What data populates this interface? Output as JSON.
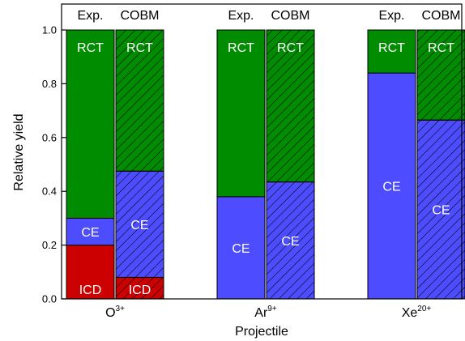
{
  "chart_data": {
    "type": "bar",
    "stacked": true,
    "xlabel": "Projectile",
    "ylabel": "Relative yield",
    "ylim": [
      0,
      1.0
    ],
    "yticks": [
      "0.0",
      "0.2",
      "0.4",
      "0.6",
      "0.8",
      "1.0"
    ],
    "categories": [
      {
        "base": "O",
        "sup": "3+"
      },
      {
        "base": "Ar",
        "sup": "9+"
      },
      {
        "base": "Xe",
        "sup": "20+"
      }
    ],
    "bar_types": [
      {
        "name": "Exp.",
        "pattern": "solid"
      },
      {
        "name": "COBM",
        "pattern": "hatched"
      }
    ],
    "segment_colors": {
      "ICD": "#cc0000",
      "CE": "#4d4dff",
      "RCT": "#008c00"
    },
    "bars": [
      {
        "category": 0,
        "type": "Exp.",
        "segments": [
          {
            "name": "ICD",
            "value": 0.2,
            "label": "ICD"
          },
          {
            "name": "CE",
            "value": 0.1,
            "label": "CE"
          },
          {
            "name": "RCT",
            "value": 0.7,
            "label": "RCT"
          }
        ]
      },
      {
        "category": 0,
        "type": "COBM",
        "segments": [
          {
            "name": "ICD",
            "value": 0.08,
            "label": "ICD"
          },
          {
            "name": "CE",
            "value": 0.395,
            "label": "CE"
          },
          {
            "name": "RCT",
            "value": 0.525,
            "label": "RCT"
          }
        ]
      },
      {
        "category": 1,
        "type": "Exp.",
        "segments": [
          {
            "name": "CE",
            "value": 0.38,
            "label": "CE"
          },
          {
            "name": "RCT",
            "value": 0.62,
            "label": "RCT"
          }
        ]
      },
      {
        "category": 1,
        "type": "COBM",
        "segments": [
          {
            "name": "CE",
            "value": 0.435,
            "label": "CE"
          },
          {
            "name": "RCT",
            "value": 0.565,
            "label": "RCT"
          }
        ]
      },
      {
        "category": 2,
        "type": "Exp.",
        "segments": [
          {
            "name": "CE",
            "value": 0.84,
            "label": "CE"
          },
          {
            "name": "RCT",
            "value": 0.16,
            "label": "RCT"
          }
        ]
      },
      {
        "category": 2,
        "type": "COBM",
        "segments": [
          {
            "name": "CE",
            "value": 0.665,
            "label": "CE"
          },
          {
            "name": "RCT",
            "value": 0.335,
            "label": "RCT"
          }
        ]
      }
    ]
  }
}
